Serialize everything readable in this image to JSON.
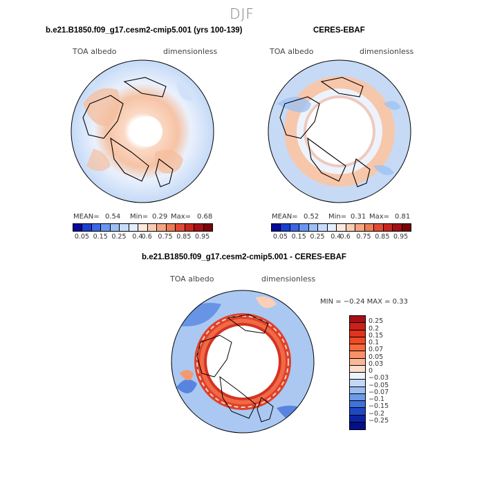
{
  "season": "DJF",
  "panel_left": {
    "title": "b.e21.B1850.f09_g17.cesm2-cmip5.001 (yrs 100-139)",
    "variable": "TOA albedo",
    "units": "dimensionless",
    "mean_label": "MEAN=",
    "mean": "0.54",
    "min_label": "Min=",
    "min": "0.29",
    "max_label": "Max=",
    "max": "0.68"
  },
  "panel_right": {
    "title": "CERES-EBAF",
    "variable": "TOA albedo",
    "units": "dimensionless",
    "mean_label": "MEAN=",
    "mean": "0.52",
    "min_label": "Min=",
    "min": "0.31",
    "max_label": "Max=",
    "max": "0.81"
  },
  "panel_diff": {
    "title": "b.e21.B1850.f09_g17.cesm2-cmip5.001 - CERES-EBAF",
    "variable": "TOA albedo",
    "units": "dimensionless",
    "minmax": "MIN =  −0.24  MAX =    0.33"
  },
  "colorbar_abs": {
    "labels": [
      "0.05",
      "0.15",
      "0.25",
      "0.4",
      "0.6",
      "0.75",
      "0.85",
      "0.95"
    ],
    "colors": [
      "#08089a",
      "#1a3fd1",
      "#3b66e6",
      "#6a96f2",
      "#9cbff7",
      "#c6dcfb",
      "#e4eefc",
      "#fce8dc",
      "#f9cdb2",
      "#f4a582",
      "#ef7a55",
      "#e34a33",
      "#c8261d",
      "#a50f15",
      "#7a0406"
    ]
  },
  "colorbar_diff": {
    "labels": [
      "0.25",
      "0.2",
      "0.15",
      "0.1",
      "0.07",
      "0.05",
      "0.03",
      "0",
      "−0.03",
      "−0.05",
      "−0.07",
      "−0.1",
      "−0.15",
      "−0.2",
      "−0.25"
    ],
    "colors": [
      "#a50f15",
      "#cc1f1a",
      "#e0341e",
      "#ef4a24",
      "#f56a3a",
      "#f99168",
      "#fbb899",
      "#fcdccb",
      "#edf3fc",
      "#c4d8f6",
      "#9cbdf0",
      "#6c9be8",
      "#3e73dc",
      "#2048c6",
      "#0c24a4",
      "#04108a"
    ]
  }
}
